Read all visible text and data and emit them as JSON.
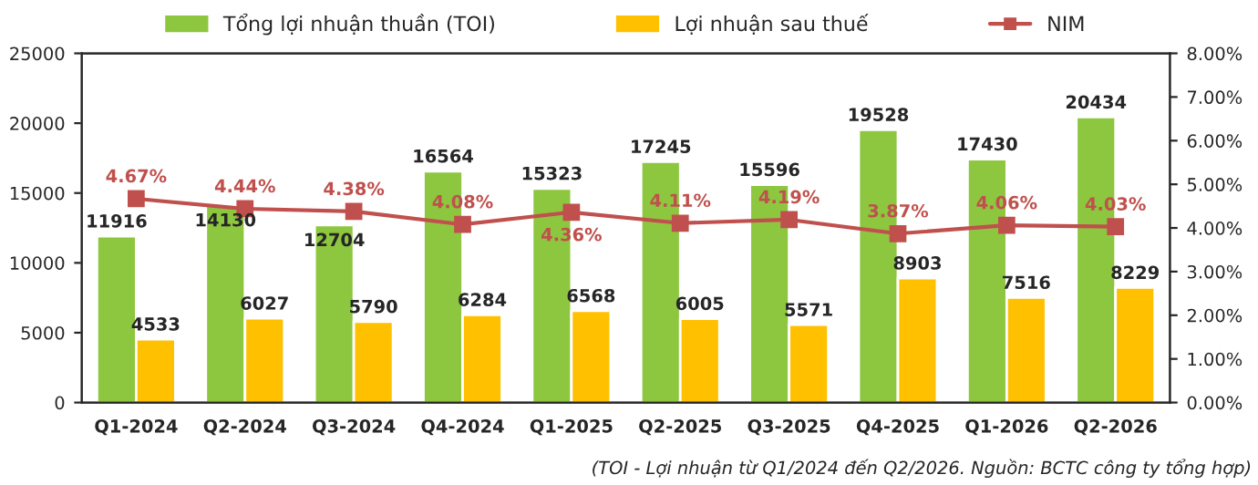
{
  "chart_data": {
    "type": "bar",
    "categories": [
      "Q1-2024",
      "Q2-2024",
      "Q3-2024",
      "Q4-2024",
      "Q1-2025",
      "Q2-2025",
      "Q3-2025",
      "Q4-2025",
      "Q1-2026",
      "Q2-2026"
    ],
    "series": [
      {
        "name": "Tổng lợi nhuận thuần (TOI)",
        "color": "#8dc63f",
        "values": [
          11916,
          14130,
          12704,
          16564,
          15323,
          17245,
          15596,
          19528,
          17430,
          20434
        ]
      },
      {
        "name": "Lợi nhuận sau thuế",
        "color": "#ffc000",
        "values": [
          4533,
          6027,
          5790,
          6284,
          6568,
          6005,
          5571,
          8903,
          7516,
          8229
        ]
      },
      {
        "name": "NIM",
        "type": "line",
        "axis": "y2",
        "color": "#c0504d",
        "marker": "square",
        "values": [
          4.67,
          4.44,
          4.38,
          4.08,
          4.36,
          4.11,
          4.19,
          3.87,
          4.06,
          4.03
        ],
        "value_labels": [
          "4.67%",
          "4.44%",
          "4.38%",
          "4.08%",
          "4.36%",
          "4.11%",
          "4.19%",
          "3.87%",
          "4.06%",
          "4.03%"
        ]
      }
    ],
    "ylim": [
      0,
      25000
    ],
    "yticks": [
      0,
      5000,
      10000,
      15000,
      20000,
      25000
    ],
    "y2lim": [
      0,
      8
    ],
    "y2ticks": [
      {
        "value": 0,
        "label": "0.00%"
      },
      {
        "value": 1,
        "label": "1.00%"
      },
      {
        "value": 2,
        "label": "2.00%"
      },
      {
        "value": 3,
        "label": "3.00%"
      },
      {
        "value": 4,
        "label": "4.00%"
      },
      {
        "value": 5,
        "label": "5.00%"
      },
      {
        "value": 6,
        "label": "6.00%"
      },
      {
        "value": 7,
        "label": "7.00%"
      },
      {
        "value": 8,
        "label": "8.00%"
      }
    ],
    "data_labels": true,
    "legend": "top",
    "grid": false,
    "annotations": [
      "(TOI - Lợi nhuận từ Q1/2024 đến Q2/2026. Nguồn: BCTC công ty tổng hợp)"
    ]
  }
}
